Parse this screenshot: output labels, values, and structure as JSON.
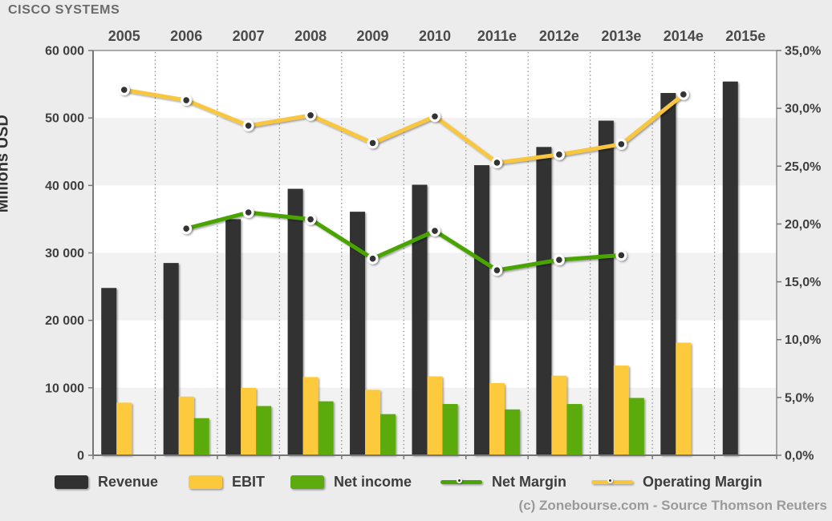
{
  "title": "CISCO SYSTEMS",
  "copyright": "(c) Zonebourse.com - Source Thomson Reuters",
  "colors": {
    "background": "#ececec",
    "plot_white": "#ffffff",
    "plot_band": "#f2f2f2",
    "axis": "#8a8a8a",
    "axis_dark": "#777777",
    "grid_dotted": "#8a8a8a",
    "tick_label": "#3f3f3f",
    "year_label": "#4a4a4a",
    "revenue": "#313131",
    "ebit": "#fdc93c",
    "net_income": "#5cab0f",
    "net_margin_line": "#4aa406",
    "operating_margin_line": "#f9c63f",
    "point_fill": "#333333",
    "point_ring": "#ffffff"
  },
  "legend": [
    {
      "label": "Revenue",
      "type": "box",
      "color": "#313131"
    },
    {
      "label": "EBIT",
      "type": "box",
      "color": "#fdc93c"
    },
    {
      "label": "Net income",
      "type": "box",
      "color": "#5cab0f"
    },
    {
      "label": "Net Margin",
      "type": "line",
      "color": "#4aa406"
    },
    {
      "label": "Operating Margin",
      "type": "line",
      "color": "#f9c63f"
    }
  ],
  "chart_data": {
    "type": "combo-bar-line",
    "categories": [
      "2005",
      "2006",
      "2007",
      "2008",
      "2009",
      "2010",
      "2011e",
      "2012e",
      "2013e",
      "2014e",
      "2015e"
    ],
    "left_axis": {
      "title": "Millions USD",
      "min": 0,
      "max": 60000,
      "tick_step": 10000,
      "tick_labels": [
        "0",
        "10 000",
        "20 000",
        "30 000",
        "40 000",
        "50 000",
        "60 000"
      ]
    },
    "right_axis": {
      "min": 0,
      "max": 35,
      "tick_step": 5,
      "tick_labels": [
        "0,0%",
        "5,0%",
        "10,0%",
        "15,0%",
        "20,0%",
        "25,0%",
        "30,0%",
        "35,0%"
      ]
    },
    "grid": {
      "vertical_dotted": true,
      "horizontal_bands": true
    },
    "legend_position": "bottom",
    "series": [
      {
        "name": "Revenue",
        "type": "bar",
        "axis": "left",
        "values": [
          24800,
          28500,
          35000,
          39500,
          36100,
          40100,
          43000,
          45700,
          49600,
          53700,
          55400
        ]
      },
      {
        "name": "EBIT",
        "type": "bar",
        "axis": "left",
        "values": [
          7800,
          8700,
          10000,
          11600,
          9700,
          11700,
          10700,
          11800,
          13300,
          16700,
          null
        ]
      },
      {
        "name": "Net income",
        "type": "bar",
        "axis": "left",
        "values": [
          null,
          5500,
          7300,
          8000,
          6100,
          7600,
          6800,
          7600,
          8500,
          null,
          null
        ]
      },
      {
        "name": "Net Margin",
        "type": "line",
        "axis": "right",
        "values": [
          null,
          19.6,
          21.0,
          20.4,
          17.0,
          19.4,
          16.0,
          16.9,
          17.3,
          null,
          null
        ]
      },
      {
        "name": "Operating Margin",
        "type": "line",
        "axis": "right",
        "values": [
          31.6,
          30.7,
          28.5,
          29.4,
          27.0,
          29.3,
          25.3,
          26.0,
          26.9,
          31.2,
          null
        ]
      }
    ]
  }
}
